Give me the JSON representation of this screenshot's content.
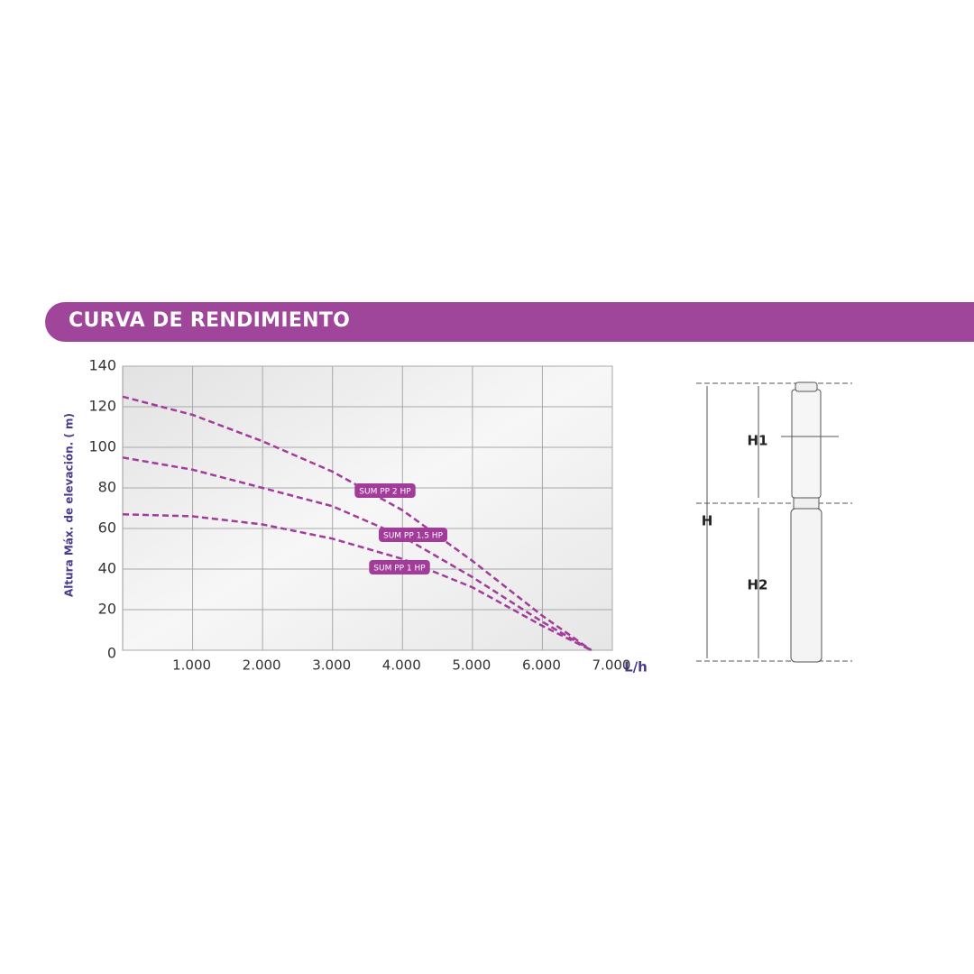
{
  "header": {
    "title": "CURVA DE RENDIMIENTO"
  },
  "chart_data": {
    "type": "line",
    "ylabel": "Altura Máx. de elevación. ( m)",
    "xlabel": "L/h",
    "x": [
      0,
      1000,
      2000,
      3000,
      4000,
      5000,
      6000,
      6700
    ],
    "series": [
      {
        "name": "SUM PP 2 HP",
        "color": "#a33b9b",
        "values": [
          125,
          116,
          103,
          88,
          69,
          44,
          17,
          0
        ]
      },
      {
        "name": "SUM PP 1.5 HP",
        "color": "#a33b9b",
        "values": [
          95,
          89,
          80,
          71,
          56,
          36,
          14,
          0
        ]
      },
      {
        "name": "SUM PP 1 HP",
        "color": "#a33b9b",
        "values": [
          67,
          66,
          62,
          55,
          45,
          31,
          12,
          0
        ]
      }
    ],
    "xlim": [
      0,
      7000
    ],
    "ylim": [
      0,
      140
    ],
    "xticks": [
      {
        "value": 1000,
        "label": "1.000"
      },
      {
        "value": 2000,
        "label": "2.000"
      },
      {
        "value": 3000,
        "label": "3.000"
      },
      {
        "value": 4000,
        "label": "4.000"
      },
      {
        "value": 5000,
        "label": "5.000"
      },
      {
        "value": 6000,
        "label": "6.000"
      },
      {
        "value": 7000,
        "label": "7.000"
      }
    ],
    "yticks": [
      0,
      20,
      40,
      60,
      80,
      100,
      120,
      140
    ],
    "grid": true
  },
  "diagram": {
    "labels": {
      "total": "H",
      "upper": "H1",
      "lower": "H2"
    }
  }
}
